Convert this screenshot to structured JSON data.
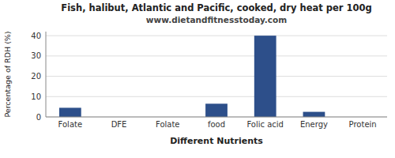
{
  "chart_data": {
    "type": "bar",
    "title": "Fish, halibut, Atlantic and Pacific, cooked, dry heat per 100g",
    "subtitle": "www.dietandfitnesstoday.com",
    "xlabel": "Different Nutrients",
    "ylabel": "Percentage of RDH (%)",
    "categories": [
      "Folate",
      "DFE",
      "Folate",
      "food",
      "Folic acid",
      "Energy",
      "Protein"
    ],
    "values": [
      4.5,
      0.0,
      0.0,
      6.5,
      40.0,
      2.5,
      0.0
    ],
    "color": "#2d4f8a",
    "ylim": [
      0,
      42
    ],
    "yticks": [
      0,
      10,
      20,
      30,
      40
    ],
    "grid": true
  }
}
